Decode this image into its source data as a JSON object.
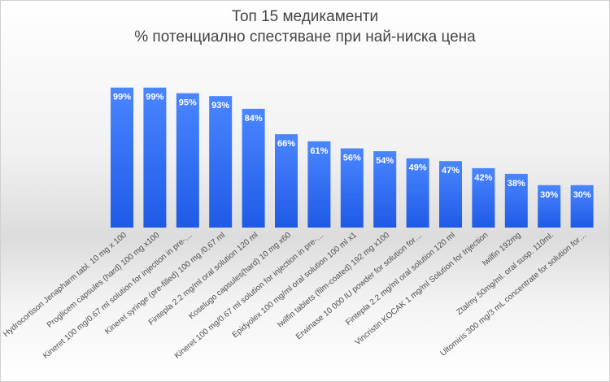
{
  "chart_data": {
    "type": "bar",
    "title": "Топ 15 медикаменти",
    "subtitle": "% потенциално спестяване при най-ниска цена",
    "categories": [
      "Hydrocortison Jenapharm tabl. 10 mg x 100",
      "Proglicem capsules (hard) 100 mg x100",
      "Kineret 100 mg/0.67 ml solution for injection in pre-…",
      "Kineret syringe (pre-filled) 100 mg /0,67 ml",
      "Fintepla 2.2 mg/ml oral solution 120 ml",
      "Koselugo capsules(hard) 10 mg x60",
      "Kineret 100 mg/0.67 ml solution for injection in pre-…",
      "Epidyolex 100 mg/ml oral solution 100 ml x1",
      "Iwilfin tablets (film-coated) 192 mg x100",
      "Erwinase 10 000 IU powder for solution for…",
      "Fintepla 2.2 mg/ml oral solution 120 ml",
      "Vincristin KOCAK 1 mg/ml Solution for Injection",
      "Iwilfin 192mg",
      "Ztalmy 50mg/ml. oral susp. 110ml.",
      "Ultomiris 300 mg/3 mL concentrate for solution for…"
    ],
    "values": [
      99,
      99,
      95,
      93,
      84,
      66,
      61,
      56,
      54,
      49,
      47,
      42,
      38,
      30,
      30
    ],
    "value_labels": [
      "99%",
      "99%",
      "95%",
      "93%",
      "84%",
      "66%",
      "61%",
      "56%",
      "54%",
      "49%",
      "47%",
      "42%",
      "38%",
      "30%",
      "30%"
    ],
    "ylim": [
      0,
      100
    ],
    "xlabel": "",
    "ylabel": "",
    "bar_color": "#2f6cf0",
    "grid": false,
    "legend": "none"
  }
}
